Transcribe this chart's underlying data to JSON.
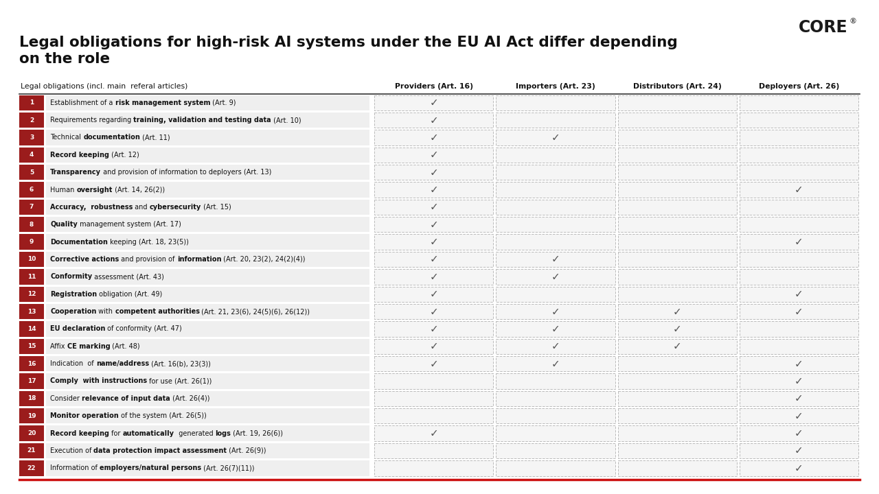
{
  "title_line1": "Legal obligations for high-risk AI systems under the EU AI Act differ depending",
  "title_line2": "on the role",
  "header_col": "Legal obligations (incl. main  referal articles)",
  "col_headers": [
    "Providers (Art. 16)",
    "Importers (Art. 23)",
    "Distributors (Art. 24)",
    "Deployers (Art. 26)"
  ],
  "rows": [
    {
      "num": 1,
      "parts": [
        [
          "Establishment of a ",
          false
        ],
        [
          "risk management system",
          true
        ],
        [
          " (Art. 9)",
          false
        ]
      ],
      "checks": [
        1,
        0,
        0,
        0
      ]
    },
    {
      "num": 2,
      "parts": [
        [
          "Requirements regarding ",
          false
        ],
        [
          "training, validation and testing data",
          true
        ],
        [
          " (Art. 10)",
          false
        ]
      ],
      "checks": [
        1,
        0,
        0,
        0
      ]
    },
    {
      "num": 3,
      "parts": [
        [
          "Technical ",
          false
        ],
        [
          "documentation",
          true
        ],
        [
          " (Art. 11)",
          false
        ]
      ],
      "checks": [
        1,
        1,
        0,
        0
      ]
    },
    {
      "num": 4,
      "parts": [
        [
          "",
          false
        ],
        [
          "Record keeping",
          true
        ],
        [
          " (Art. 12)",
          false
        ]
      ],
      "checks": [
        1,
        0,
        0,
        0
      ]
    },
    {
      "num": 5,
      "parts": [
        [
          "",
          false
        ],
        [
          "Transparency",
          true
        ],
        [
          " and provision of information to deployers (Art. 13)",
          false
        ]
      ],
      "checks": [
        1,
        0,
        0,
        0
      ]
    },
    {
      "num": 6,
      "parts": [
        [
          "Human ",
          false
        ],
        [
          "oversight",
          true
        ],
        [
          " (Art. 14, 26(2))",
          false
        ]
      ],
      "checks": [
        1,
        0,
        0,
        1
      ]
    },
    {
      "num": 7,
      "parts": [
        [
          "",
          false
        ],
        [
          "Accuracy,  robustness",
          true
        ],
        [
          " and ",
          false
        ],
        [
          "cybersecurity",
          true
        ],
        [
          " (Art. 15)",
          false
        ]
      ],
      "checks": [
        1,
        0,
        0,
        0
      ]
    },
    {
      "num": 8,
      "parts": [
        [
          "",
          false
        ],
        [
          "Quality",
          true
        ],
        [
          " management system (Art. 17)",
          false
        ]
      ],
      "checks": [
        1,
        0,
        0,
        0
      ]
    },
    {
      "num": 9,
      "parts": [
        [
          "",
          false
        ],
        [
          "Documentation",
          true
        ],
        [
          " keeping (Art. 18, 23(5))",
          false
        ]
      ],
      "checks": [
        1,
        0,
        0,
        1
      ]
    },
    {
      "num": 10,
      "parts": [
        [
          "",
          false
        ],
        [
          "Corrective actions",
          true
        ],
        [
          " and provision of ",
          false
        ],
        [
          "information",
          true
        ],
        [
          " (Art. 20, 23(2), 24(2)(4))",
          false
        ]
      ],
      "checks": [
        1,
        1,
        0,
        0
      ]
    },
    {
      "num": 11,
      "parts": [
        [
          "",
          false
        ],
        [
          "Conformity",
          true
        ],
        [
          " assessment (Art. 43)",
          false
        ]
      ],
      "checks": [
        1,
        1,
        0,
        0
      ]
    },
    {
      "num": 12,
      "parts": [
        [
          "",
          false
        ],
        [
          "Registration",
          true
        ],
        [
          " obligation (Art. 49)",
          false
        ]
      ],
      "checks": [
        1,
        0,
        0,
        1
      ]
    },
    {
      "num": 13,
      "parts": [
        [
          "",
          false
        ],
        [
          "Cooperation",
          true
        ],
        [
          " with ",
          false
        ],
        [
          "competent authorities",
          true
        ],
        [
          " (Art. 21, 23(6), 24(5)(6), 26(12))",
          false
        ]
      ],
      "checks": [
        1,
        1,
        1,
        1
      ]
    },
    {
      "num": 14,
      "parts": [
        [
          "",
          false
        ],
        [
          "EU declaration",
          true
        ],
        [
          " of conformity (Art. 47)",
          false
        ]
      ],
      "checks": [
        1,
        1,
        1,
        0
      ]
    },
    {
      "num": 15,
      "parts": [
        [
          "Affix ",
          false
        ],
        [
          "CE marking",
          true
        ],
        [
          " (Art. 48)",
          false
        ]
      ],
      "checks": [
        1,
        1,
        1,
        0
      ]
    },
    {
      "num": 16,
      "parts": [
        [
          "Indication  of ",
          false
        ],
        [
          "name/address",
          true
        ],
        [
          " (Art. 16(b), 23(3))",
          false
        ]
      ],
      "checks": [
        1,
        1,
        0,
        1
      ]
    },
    {
      "num": 17,
      "parts": [
        [
          "",
          false
        ],
        [
          "Comply  with instructions",
          true
        ],
        [
          " for use (Art. 26(1))",
          false
        ]
      ],
      "checks": [
        0,
        0,
        0,
        1
      ]
    },
    {
      "num": 18,
      "parts": [
        [
          "Consider ",
          false
        ],
        [
          "relevance of input data",
          true
        ],
        [
          " (Art. 26(4))",
          false
        ]
      ],
      "checks": [
        0,
        0,
        0,
        1
      ]
    },
    {
      "num": 19,
      "parts": [
        [
          "",
          false
        ],
        [
          "Monitor operation",
          true
        ],
        [
          " of the system (Art. 26(5))",
          false
        ]
      ],
      "checks": [
        0,
        0,
        0,
        1
      ]
    },
    {
      "num": 20,
      "parts": [
        [
          "",
          false
        ],
        [
          "Record keeping",
          true
        ],
        [
          " for ",
          false
        ],
        [
          "automatically",
          true
        ],
        [
          "  generated ",
          false
        ],
        [
          "logs",
          true
        ],
        [
          " (Art. 19, 26(6))",
          false
        ]
      ],
      "checks": [
        1,
        0,
        0,
        1
      ]
    },
    {
      "num": 21,
      "parts": [
        [
          "Execution of ",
          false
        ],
        [
          "data protection impact assessment",
          true
        ],
        [
          " (Art. 26(9))",
          false
        ]
      ],
      "checks": [
        0,
        0,
        0,
        1
      ]
    },
    {
      "num": 22,
      "parts": [
        [
          "Information of ",
          false
        ],
        [
          "employers/natural persons",
          true
        ],
        [
          " (Art. 26(7)(11))",
          false
        ]
      ],
      "checks": [
        0,
        0,
        0,
        1
      ]
    }
  ],
  "red_color": "#9B1C1C",
  "bg_color": "#FFFFFF",
  "cell_bg": "#F0F0F0",
  "dashed_color": "#AAAAAA",
  "check_color": "#555555",
  "logo_color": "#1A1A1A",
  "title_fontsize": 15.5,
  "header_fontsize": 7.8,
  "row_fontsize": 7.0,
  "check_fontsize": 11
}
